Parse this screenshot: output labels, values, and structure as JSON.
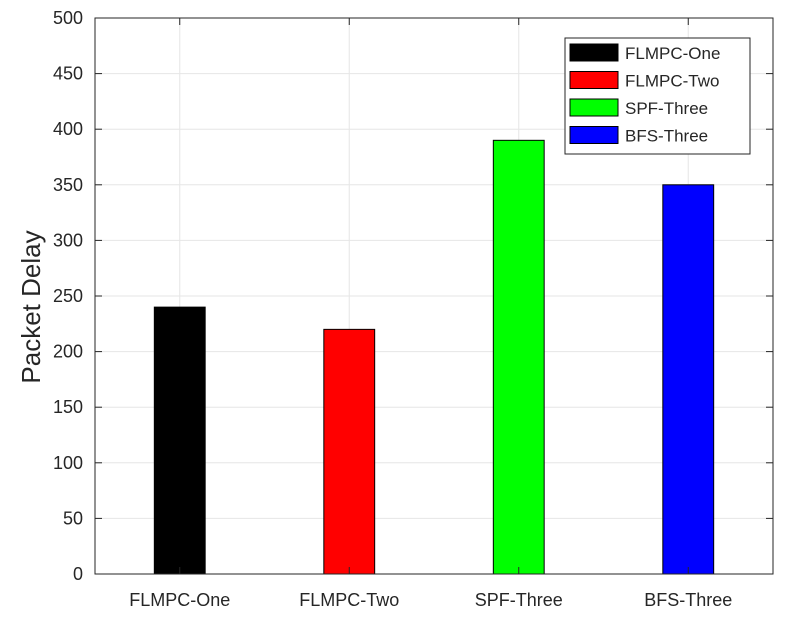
{
  "chart_data": {
    "type": "bar",
    "categories": [
      "FLMPC-One",
      "FLMPC-Two",
      "SPF-Three",
      "BFS-Three"
    ],
    "values": [
      240,
      220,
      390,
      350
    ],
    "colors": [
      "#000000",
      "#ff0000",
      "#00ff00",
      "#0000ff"
    ],
    "title": "",
    "xlabel": "",
    "ylabel": "Packet Delay",
    "ylim": [
      0,
      500
    ],
    "yticks": [
      0,
      50,
      100,
      150,
      200,
      250,
      300,
      350,
      400,
      450,
      500
    ],
    "grid": true,
    "legend": {
      "position": "top-right",
      "entries": [
        "FLMPC-One",
        "FLMPC-Two",
        "SPF-Three",
        "BFS-Three"
      ]
    }
  }
}
